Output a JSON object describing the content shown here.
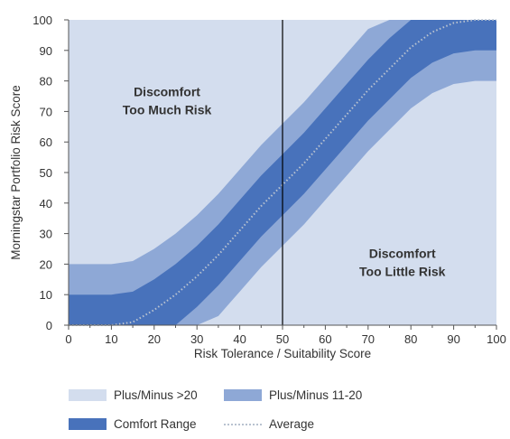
{
  "chart_data": {
    "type": "area",
    "xlabel": "Risk Tolerance / Suitability Score",
    "ylabel": "Morningstar Portfolio Risk Score",
    "xlim": [
      0,
      100
    ],
    "ylim": [
      0,
      100
    ],
    "x_ticks": [
      "0",
      "10",
      "20",
      "30",
      "40",
      "50",
      "60",
      "70",
      "80",
      "90",
      "100"
    ],
    "y_ticks": [
      "0",
      "10",
      "20",
      "30",
      "40",
      "50",
      "60",
      "70",
      "80",
      "90",
      "100"
    ],
    "grid": false,
    "colors": {
      "plus_minus_over_20": "#d3ddee",
      "plus_minus_11_20": "#8ea8d6",
      "comfort_range": "#4872bb",
      "average": "#b8c2d0"
    },
    "x": [
      0,
      5,
      10,
      15,
      20,
      25,
      30,
      35,
      40,
      45,
      50,
      55,
      60,
      65,
      70,
      75,
      80,
      85,
      90,
      95,
      100
    ],
    "series": [
      {
        "name": "Average",
        "values": [
          0,
          0,
          0,
          1,
          5,
          10,
          16,
          23,
          31,
          39,
          46,
          53,
          61,
          69,
          77,
          84,
          91,
          96,
          99,
          100,
          100
        ]
      }
    ],
    "bands": [
      {
        "name": "Comfort Range",
        "lower": [
          0,
          0,
          0,
          0,
          0,
          0,
          6,
          13,
          21,
          29,
          36,
          43,
          51,
          59,
          67,
          74,
          81,
          86,
          89,
          90,
          90
        ],
        "upper": [
          10,
          10,
          10,
          11,
          15,
          20,
          26,
          33,
          41,
          49,
          56,
          63,
          71,
          79,
          87,
          94,
          100,
          100,
          100,
          100,
          100
        ]
      },
      {
        "name": "Plus/Minus 11-20",
        "lower": [
          0,
          0,
          0,
          0,
          0,
          0,
          0,
          3,
          11,
          19,
          26,
          33,
          41,
          49,
          57,
          64,
          71,
          76,
          79,
          80,
          80
        ],
        "upper": [
          20,
          20,
          20,
          21,
          25,
          30,
          36,
          43,
          51,
          59,
          66,
          73,
          81,
          89,
          97,
          100,
          100,
          100,
          100,
          100,
          100
        ]
      }
    ],
    "vline_x": 50,
    "annotations": [
      {
        "id": "too-much",
        "lines": [
          "Discomfort",
          "Too Much Risk"
        ],
        "x": 23,
        "y": 75
      },
      {
        "id": "too-little",
        "lines": [
          "Discomfort",
          "Too Little Risk"
        ],
        "x": 78,
        "y": 22
      }
    ],
    "legend": [
      {
        "id": "over20",
        "label": "Plus/Minus >20",
        "kind": "box"
      },
      {
        "id": "pm1120",
        "label": "Plus/Minus 11-20",
        "kind": "box"
      },
      {
        "id": "comfort",
        "label": "Comfort Range",
        "kind": "box"
      },
      {
        "id": "average",
        "label": "Average",
        "kind": "line"
      }
    ]
  }
}
